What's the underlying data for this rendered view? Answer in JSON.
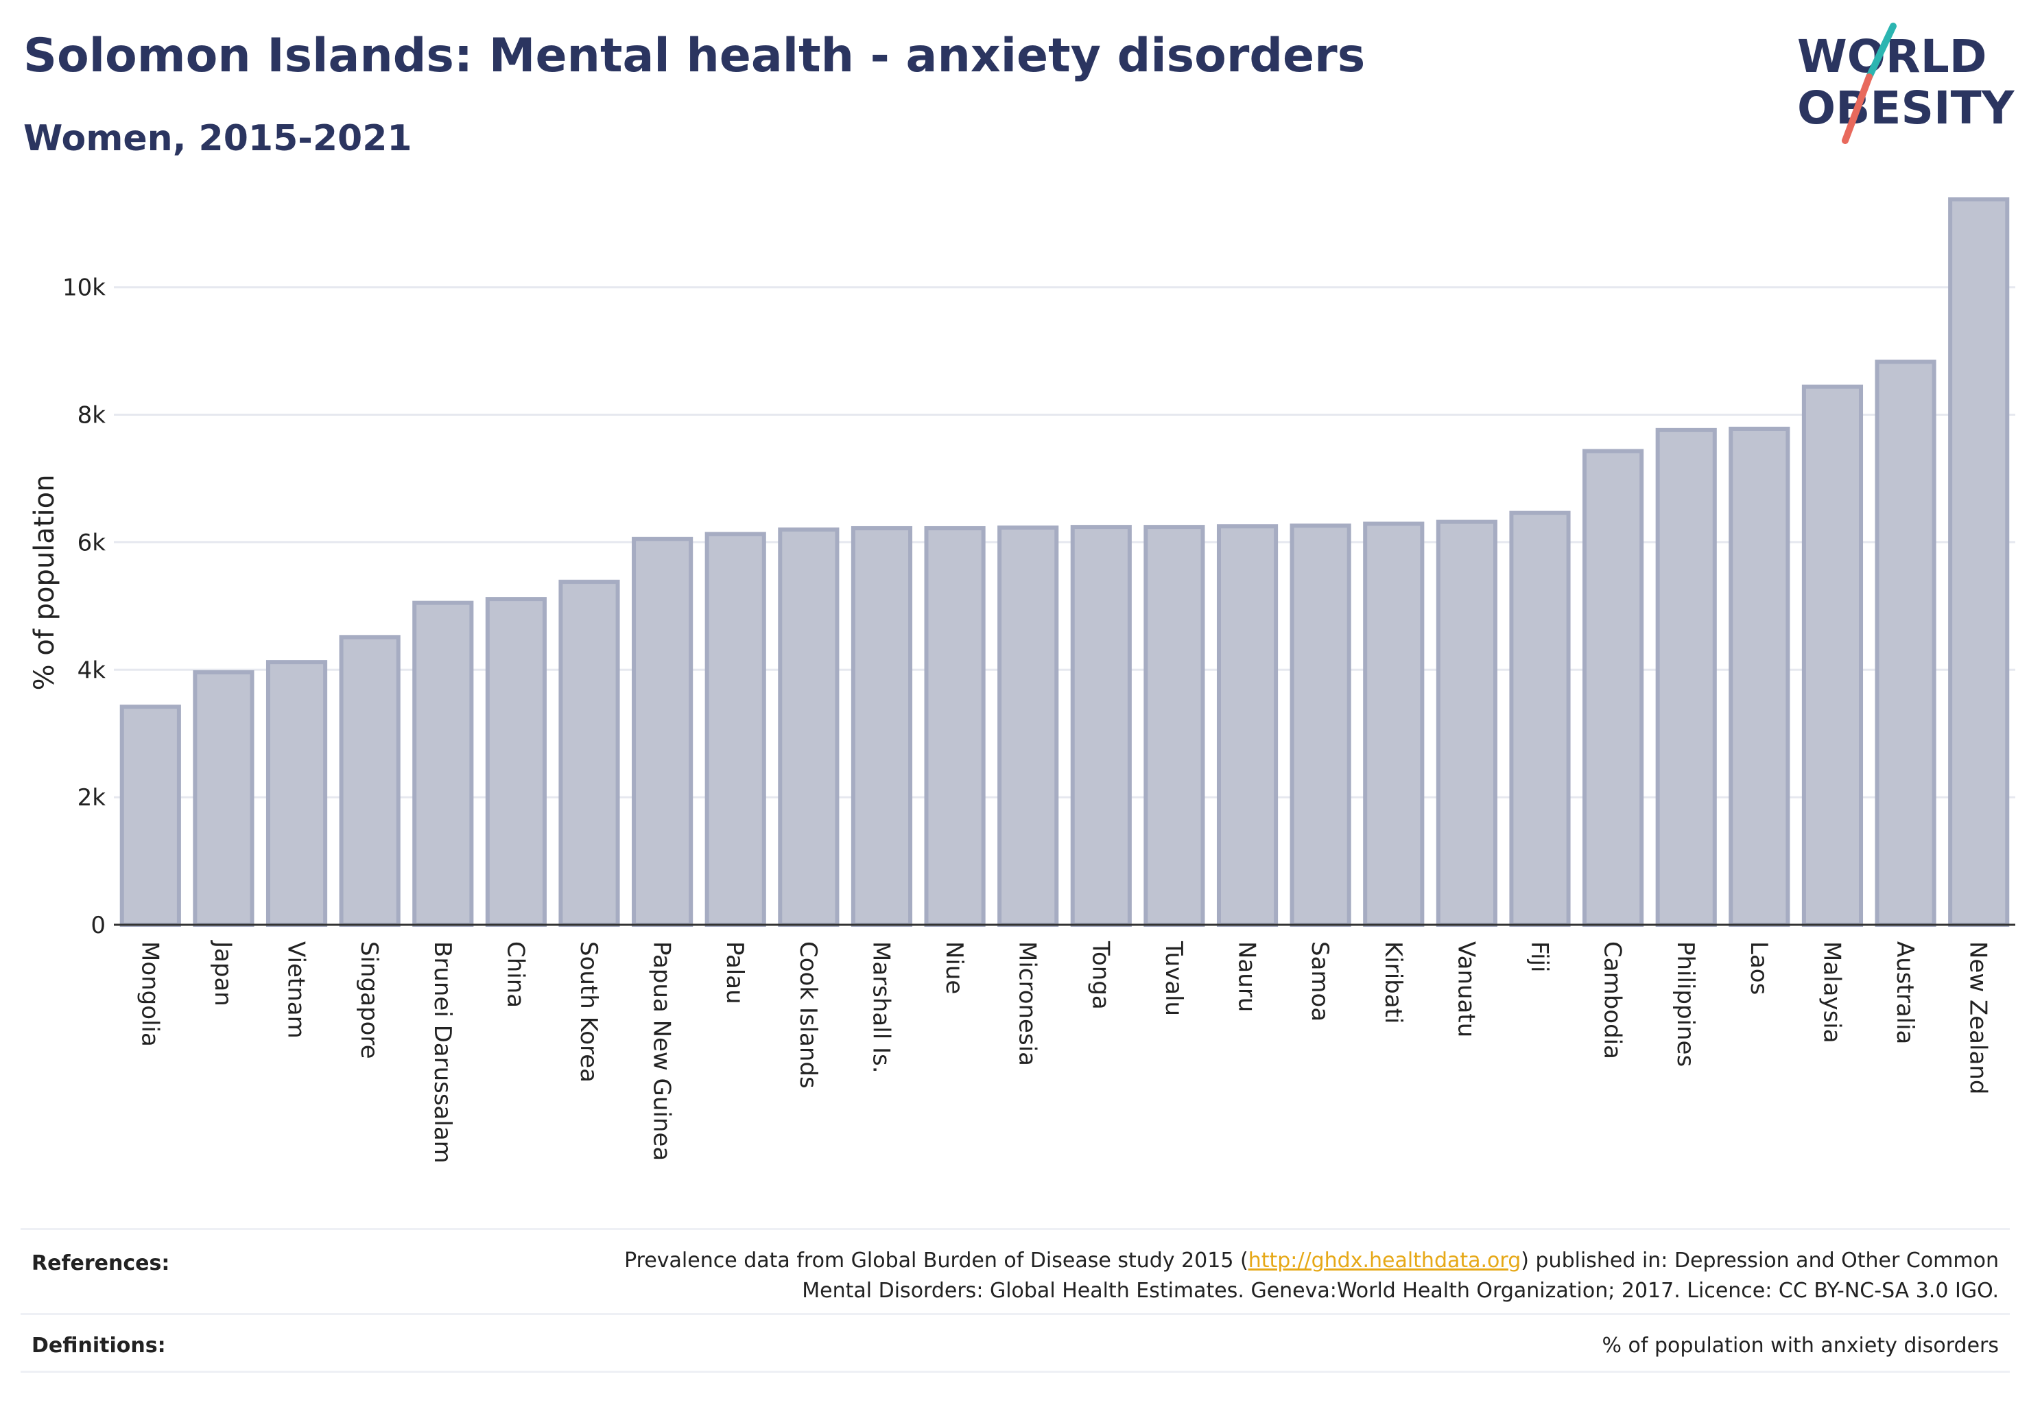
{
  "header": {
    "title": "Solomon Islands: Mental health - anxiety disorders",
    "subtitle": "Women, 2015-2021"
  },
  "logo": {
    "line1": "WORLD",
    "line2": "OBESITY",
    "accent_colors": [
      "#2bb5b1",
      "#e8695c"
    ]
  },
  "chart_data": {
    "type": "bar",
    "ylabel": "% of population",
    "xlabel": "",
    "ylim": [
      0,
      11600
    ],
    "yticks": [
      0,
      2000,
      4000,
      6000,
      8000,
      10000
    ],
    "ytick_labels": [
      "0",
      "2k",
      "4k",
      "6k",
      "8k",
      "10k"
    ],
    "grid": true,
    "bar_color": "#bfc3d1",
    "bar_border_color": "#a6acc2",
    "categories": [
      "Mongolia",
      "Japan",
      "Vietnam",
      "Singapore",
      "Brunei Darussalam",
      "China",
      "South Korea",
      "Papua New Guinea",
      "Palau",
      "Cook Islands",
      "Marshall Is.",
      "Niue",
      "Micronesia",
      "Tonga",
      "Tuvalu",
      "Nauru",
      "Samoa",
      "Kiribati",
      "Vanuatu",
      "Fiji",
      "Cambodia",
      "Philippines",
      "Laos",
      "Malaysia",
      "Australia",
      "New Zealand"
    ],
    "values": [
      3420,
      3960,
      4120,
      4510,
      5050,
      5110,
      5380,
      6050,
      6130,
      6200,
      6220,
      6220,
      6230,
      6240,
      6240,
      6250,
      6260,
      6290,
      6320,
      6460,
      7430,
      7760,
      7780,
      8440,
      8830,
      11380
    ]
  },
  "footer": {
    "references_label": "References:",
    "references_text_before": "Prevalence data from Global Burden of Disease study 2015 (",
    "references_link": "http://ghdx.healthdata.org",
    "references_text_after": ") published in: Depression and Other Common",
    "references_line2": "Mental Disorders: Global Health Estimates. Geneva:World Health Organization; 2017. Licence: CC BY-NC-SA 3.0 IGO.",
    "definitions_label": "Definitions:",
    "definitions_text": "% of population with anxiety disorders"
  }
}
